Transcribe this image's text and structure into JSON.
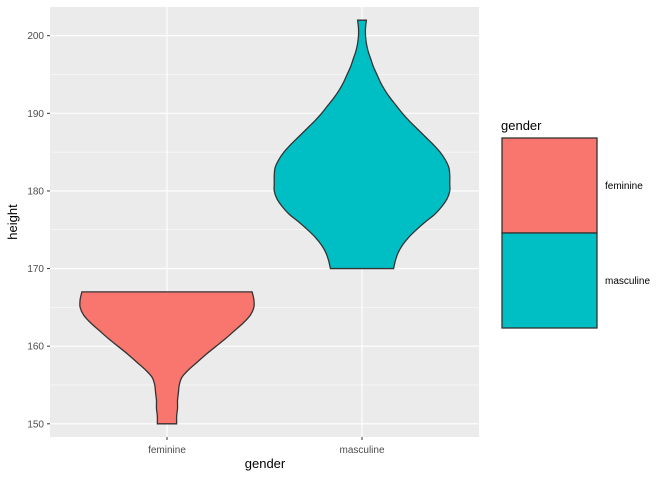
{
  "chart_data": {
    "type": "violin",
    "xlabel": "gender",
    "ylabel": "height",
    "ylim": [
      148.3,
      203.7
    ],
    "yticks": [
      150,
      160,
      170,
      180,
      190,
      200
    ],
    "categories": [
      "feminine",
      "masculine"
    ],
    "grid": true,
    "legend": {
      "title": "gender",
      "placement": "right",
      "entries": [
        {
          "label": "feminine",
          "color": "#F8766D"
        },
        {
          "label": "masculine",
          "color": "#00BFC4"
        }
      ]
    },
    "series": [
      {
        "category": "feminine",
        "color": "#F8766D",
        "min": 150,
        "max": 167,
        "profile": [
          [
            150,
            0.11
          ],
          [
            151,
            0.11
          ],
          [
            152,
            0.12
          ],
          [
            153,
            0.12
          ],
          [
            154,
            0.13
          ],
          [
            155,
            0.14
          ],
          [
            156,
            0.17
          ],
          [
            157,
            0.25
          ],
          [
            158,
            0.35
          ],
          [
            159,
            0.45
          ],
          [
            160,
            0.56
          ],
          [
            161,
            0.67
          ],
          [
            162,
            0.77
          ],
          [
            163,
            0.87
          ],
          [
            164,
            0.95
          ],
          [
            165,
            0.99
          ],
          [
            166,
            0.99
          ],
          [
            167,
            0.97
          ]
        ]
      },
      {
        "category": "masculine",
        "color": "#00BFC4",
        "min": 170,
        "max": 202,
        "profile": [
          [
            170,
            0.36
          ],
          [
            171,
            0.38
          ],
          [
            172,
            0.41
          ],
          [
            173,
            0.46
          ],
          [
            174,
            0.53
          ],
          [
            175,
            0.62
          ],
          [
            176,
            0.72
          ],
          [
            177,
            0.83
          ],
          [
            178,
            0.91
          ],
          [
            179,
            0.97
          ],
          [
            180,
            1.0
          ],
          [
            181,
            1.0
          ],
          [
            182,
            1.0
          ],
          [
            183,
            0.99
          ],
          [
            184,
            0.95
          ],
          [
            185,
            0.89
          ],
          [
            186,
            0.81
          ],
          [
            187,
            0.72
          ],
          [
            188,
            0.63
          ],
          [
            189,
            0.54
          ],
          [
            190,
            0.46
          ],
          [
            191,
            0.39
          ],
          [
            192,
            0.32
          ],
          [
            193,
            0.26
          ],
          [
            194,
            0.21
          ],
          [
            195,
            0.17
          ],
          [
            196,
            0.13
          ],
          [
            197,
            0.1
          ],
          [
            198,
            0.07
          ],
          [
            199,
            0.05
          ],
          [
            200,
            0.04
          ],
          [
            201,
            0.04
          ],
          [
            202,
            0.05
          ]
        ]
      }
    ]
  }
}
